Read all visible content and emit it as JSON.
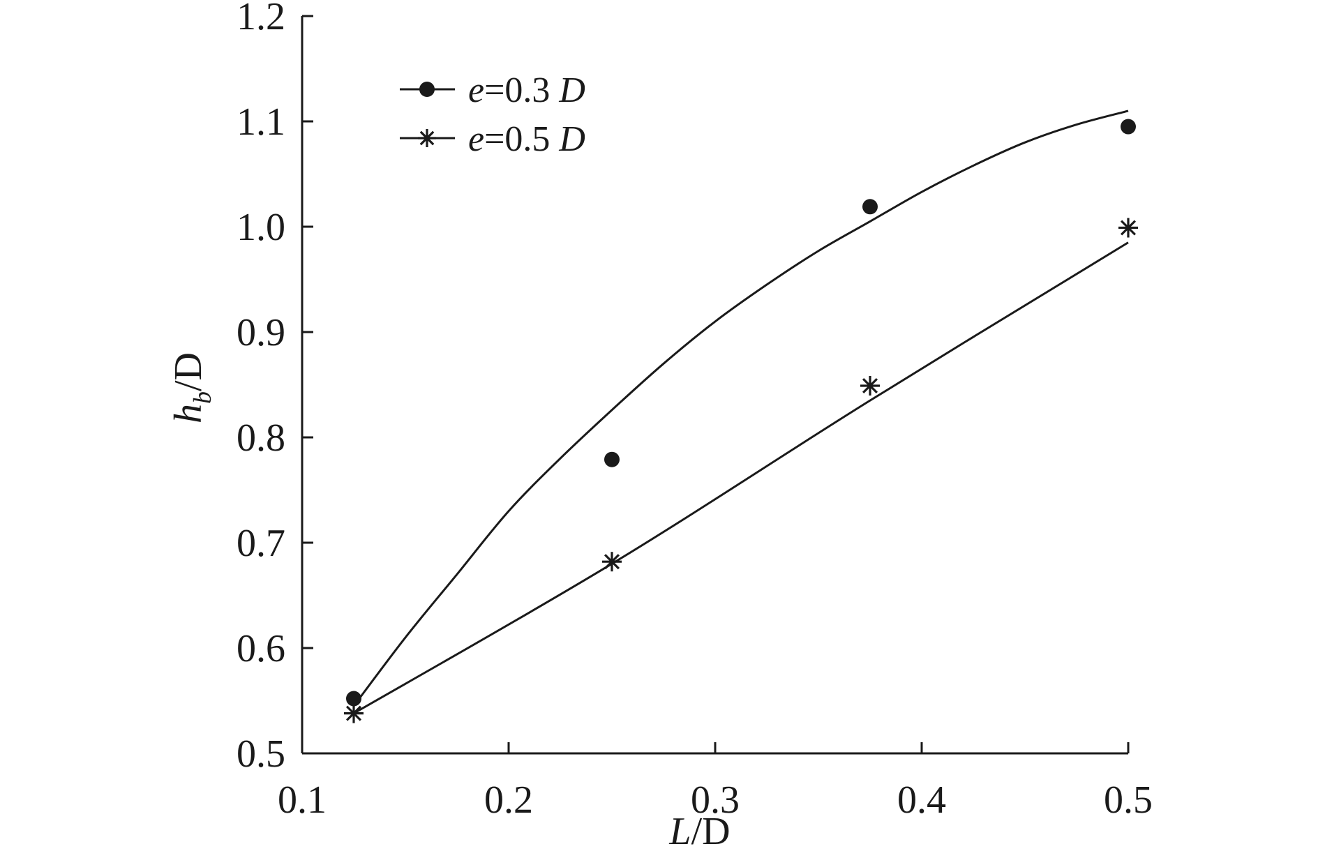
{
  "chart_data": {
    "type": "scatter",
    "title": "",
    "xlabel": {
      "main": "L",
      "rest": "/D"
    },
    "ylabel": {
      "main": "h",
      "sub": "b",
      "rest": "/D"
    },
    "xlim": [
      0.1,
      0.5
    ],
    "ylim": [
      0.5,
      1.2
    ],
    "x_ticks": [
      0.1,
      0.2,
      0.3,
      0.4,
      0.5
    ],
    "x_tick_labels": [
      "0.1",
      "0.2",
      "0.3",
      "0.4",
      "0.5"
    ],
    "y_ticks": [
      0.5,
      0.6,
      0.7,
      0.8,
      0.9,
      1.0,
      1.1,
      1.2
    ],
    "y_tick_labels": [
      "0.5",
      "0.6",
      "0.7",
      "0.8",
      "0.9",
      "1.0",
      "1.1",
      "1.2"
    ],
    "grid": false,
    "legend_position": "top-left",
    "series": [
      {
        "name": "e=0.3 D",
        "label_var": "e",
        "label_eq": "=0.3 ",
        "label_unit": "D",
        "marker": "circle",
        "x": [
          0.125,
          0.25,
          0.375,
          0.5
        ],
        "y": [
          0.552,
          0.779,
          1.019,
          1.095
        ],
        "fit_curve": {
          "x": [
            0.125,
            0.15,
            0.175,
            0.2,
            0.225,
            0.25,
            0.275,
            0.3,
            0.325,
            0.35,
            0.375,
            0.4,
            0.425,
            0.45,
            0.475,
            0.5
          ],
          "y": [
            0.545,
            0.61,
            0.67,
            0.73,
            0.78,
            0.826,
            0.87,
            0.91,
            0.945,
            0.977,
            1.005,
            1.033,
            1.058,
            1.08,
            1.097,
            1.11
          ]
        }
      },
      {
        "name": "e=0.5 D",
        "label_var": "e",
        "label_eq": "=0.5 ",
        "label_unit": "D",
        "marker": "asterisk",
        "x": [
          0.125,
          0.25,
          0.375,
          0.5
        ],
        "y": [
          0.538,
          0.682,
          0.849,
          0.999
        ],
        "fit_curve": {
          "x": [
            0.125,
            0.25,
            0.375,
            0.5
          ],
          "y": [
            0.538,
            0.68,
            0.835,
            0.985
          ]
        }
      }
    ]
  },
  "colors": {
    "ink": "#1a1a1a",
    "background": "#ffffff"
  }
}
